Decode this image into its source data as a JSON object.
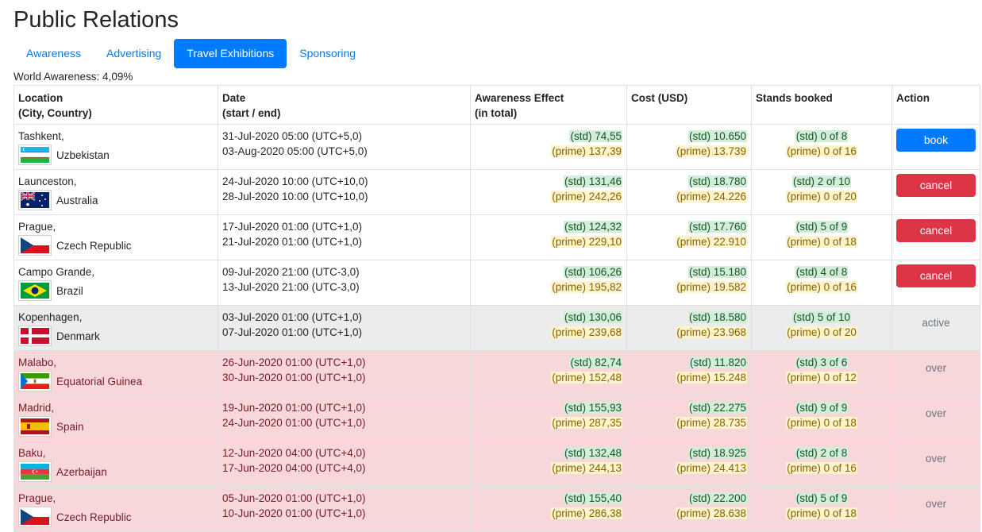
{
  "title": "Public Relations",
  "tabs": [
    {
      "label": "Awareness",
      "active": false
    },
    {
      "label": "Advertising",
      "active": false
    },
    {
      "label": "Travel Exhibitions",
      "active": true
    },
    {
      "label": "Sponsoring",
      "active": false
    }
  ],
  "world_awareness": "World Awareness: 4,09%",
  "headers": {
    "location": [
      "Location",
      "(City, Country)"
    ],
    "date": [
      "Date",
      "(start / end)"
    ],
    "effect": [
      "Awareness Effect",
      "(in total)"
    ],
    "cost": "Cost (USD)",
    "stands": "Stands booked",
    "action": "Action"
  },
  "rows": [
    {
      "city": "Tashkent,",
      "country": "Uzbekistan",
      "flag": "uzbekistan-flag-icon",
      "start": "31-Jul-2020 05:00 (UTC+5,0)",
      "end": "03-Aug-2020 05:00 (UTC+5,0)",
      "effect_std": "(std) 74,55",
      "effect_prime": "(prime) 137,39",
      "cost_std": "(std) 10.650",
      "cost_prime": "(prime) 13.739",
      "stands_std": "(std) 0 of 8",
      "stands_prime": "(prime) 0 of 16",
      "action": "book",
      "state": "normal"
    },
    {
      "city": "Launceston,",
      "country": "Australia",
      "flag": "australia-flag-icon",
      "start": "24-Jul-2020 10:00 (UTC+10,0)",
      "end": "28-Jul-2020 10:00 (UTC+10,0)",
      "effect_std": "(std) 131,46",
      "effect_prime": "(prime) 242,26",
      "cost_std": "(std) 18.780",
      "cost_prime": "(prime) 24.226",
      "stands_std": "(std) 2 of 10",
      "stands_prime": "(prime) 0 of 20",
      "action": "cancel",
      "state": "normal"
    },
    {
      "city": "Prague,",
      "country": "Czech Republic",
      "flag": "czech-republic-flag-icon",
      "start": "17-Jul-2020 01:00 (UTC+1,0)",
      "end": "21-Jul-2020 01:00 (UTC+1,0)",
      "effect_std": "(std) 124,32",
      "effect_prime": "(prime) 229,10",
      "cost_std": "(std) 17.760",
      "cost_prime": "(prime) 22.910",
      "stands_std": "(std) 5 of 9",
      "stands_prime": "(prime) 0 of 18",
      "action": "cancel",
      "state": "normal"
    },
    {
      "city": "Campo Grande,",
      "country": "Brazil",
      "flag": "brazil-flag-icon",
      "start": "09-Jul-2020 21:00 (UTC-3,0)",
      "end": "13-Jul-2020 21:00 (UTC-3,0)",
      "effect_std": "(std) 106,26",
      "effect_prime": "(prime) 195,82",
      "cost_std": "(std) 15.180",
      "cost_prime": "(prime) 19.582",
      "stands_std": "(std) 4 of 8",
      "stands_prime": "(prime) 0 of 16",
      "action": "cancel",
      "state": "normal"
    },
    {
      "city": "Kopenhagen,",
      "country": "Denmark",
      "flag": "denmark-flag-icon",
      "start": "03-Jul-2020 01:00 (UTC+1,0)",
      "end": "07-Jul-2020 01:00 (UTC+1,0)",
      "effect_std": "(std) 130,06",
      "effect_prime": "(prime) 239,68",
      "cost_std": "(std) 18.580",
      "cost_prime": "(prime) 23.968",
      "stands_std": "(std) 5 of 10",
      "stands_prime": "(prime) 0 of 20",
      "action": "active",
      "state": "active"
    },
    {
      "city": "Malabo,",
      "country": "Equatorial Guinea",
      "flag": "equatorial-guinea-flag-icon",
      "start": "26-Jun-2020 01:00 (UTC+1,0)",
      "end": "30-Jun-2020 01:00 (UTC+1,0)",
      "effect_std": "(std) 82,74",
      "effect_prime": "(prime) 152,48",
      "cost_std": "(std) 11.820",
      "cost_prime": "(prime) 15.248",
      "stands_std": "(std) 3 of 6",
      "stands_prime": "(prime) 0 of 12",
      "action": "over",
      "state": "over"
    },
    {
      "city": "Madrid,",
      "country": "Spain",
      "flag": "spain-flag-icon",
      "start": "19-Jun-2020 01:00 (UTC+1,0)",
      "end": "24-Jun-2020 01:00 (UTC+1,0)",
      "effect_std": "(std) 155,93",
      "effect_prime": "(prime) 287,35",
      "cost_std": "(std) 22.275",
      "cost_prime": "(prime) 28.735",
      "stands_std": "(std) 9 of 9",
      "stands_prime": "(prime) 0 of 18",
      "action": "over",
      "state": "over"
    },
    {
      "city": "Baku,",
      "country": "Azerbaijan",
      "flag": "azerbaijan-flag-icon",
      "start": "12-Jun-2020 04:00 (UTC+4,0)",
      "end": "17-Jun-2020 04:00 (UTC+4,0)",
      "effect_std": "(std) 132,48",
      "effect_prime": "(prime) 244,13",
      "cost_std": "(std) 18.925",
      "cost_prime": "(prime) 24.413",
      "stands_std": "(std) 2 of 8",
      "stands_prime": "(prime) 0 of 16",
      "action": "over",
      "state": "over"
    },
    {
      "city": "Prague,",
      "country": "Czech Republic",
      "flag": "czech-republic-flag-icon",
      "start": "05-Jun-2020 01:00 (UTC+1,0)",
      "end": "10-Jun-2020 01:00 (UTC+1,0)",
      "effect_std": "(std) 155,40",
      "effect_prime": "(prime) 286,38",
      "cost_std": "(std) 22.200",
      "cost_prime": "(prime) 28.638",
      "stands_std": "(std) 5 of 9",
      "stands_prime": "(prime) 0 of 18",
      "action": "over",
      "state": "over"
    }
  ]
}
